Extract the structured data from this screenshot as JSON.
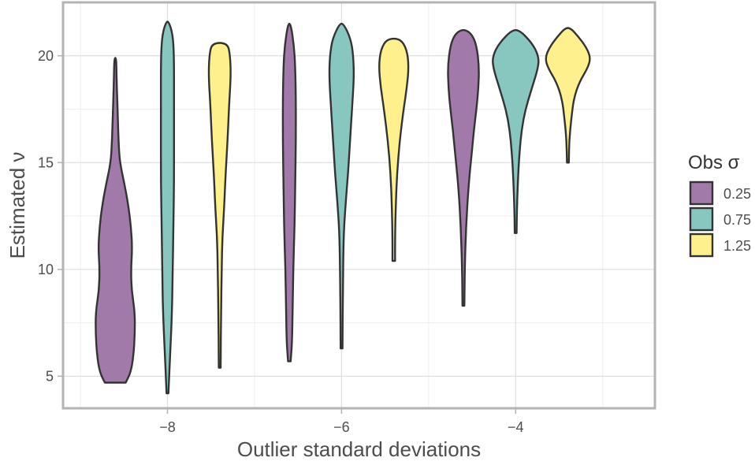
{
  "chart_data": {
    "type": "violin",
    "xlabel": "Outlier standard deviations",
    "ylabel": "Estimated ν",
    "xlim": [
      -9.2,
      -2.4
    ],
    "ylim": [
      3.5,
      22.5
    ],
    "x_ticks": [
      -8,
      -6,
      -4
    ],
    "x_tick_labels": [
      "−8",
      "−6",
      "−4"
    ],
    "y_ticks": [
      5,
      10,
      15,
      20
    ],
    "y_tick_labels": [
      "5",
      "10",
      "15",
      "20"
    ],
    "grid": true,
    "legend": {
      "title": "Obs σ",
      "placement": "right",
      "entries": [
        {
          "label": "0.25",
          "color": "#a27aaa"
        },
        {
          "label": "0.75",
          "color": "#88c6c0"
        },
        {
          "label": "1.25",
          "color": "#fdf08d"
        }
      ]
    },
    "series": [
      {
        "name": "0.25",
        "color": "#a27aaa",
        "groups": [
          {
            "x": -8.6,
            "min": 4.7,
            "max": 19.9,
            "profile": [
              [
                4.7,
                0.16
              ],
              [
                5.2,
                0.24
              ],
              [
                6.0,
                0.28
              ],
              [
                7.0,
                0.3
              ],
              [
                8.0,
                0.3
              ],
              [
                9.0,
                0.25
              ],
              [
                10.0,
                0.24
              ],
              [
                11.0,
                0.26
              ],
              [
                12.0,
                0.24
              ],
              [
                13.0,
                0.2
              ],
              [
                14.0,
                0.14
              ],
              [
                15.0,
                0.07
              ],
              [
                16.0,
                0.05
              ],
              [
                17.0,
                0.04
              ],
              [
                18.0,
                0.03
              ],
              [
                19.0,
                0.02
              ],
              [
                19.9,
                0.01
              ]
            ]
          },
          {
            "x": -6.6,
            "min": 5.7,
            "max": 21.5,
            "profile": [
              [
                5.7,
                0.02
              ],
              [
                6.5,
                0.04
              ],
              [
                8.0,
                0.05
              ],
              [
                10.0,
                0.06
              ],
              [
                12.0,
                0.08
              ],
              [
                14.0,
                0.09
              ],
              [
                16.0,
                0.1
              ],
              [
                18.0,
                0.1
              ],
              [
                19.5,
                0.09
              ],
              [
                20.5,
                0.07
              ],
              [
                21.5,
                0.02
              ]
            ]
          },
          {
            "x": -4.6,
            "min": 8.3,
            "max": 21.2,
            "profile": [
              [
                8.3,
                0.01
              ],
              [
                10.0,
                0.02
              ],
              [
                12.0,
                0.04
              ],
              [
                14.0,
                0.08
              ],
              [
                15.5,
                0.13
              ],
              [
                16.5,
                0.16
              ],
              [
                17.5,
                0.2
              ],
              [
                18.5,
                0.23
              ],
              [
                19.5,
                0.24
              ],
              [
                20.5,
                0.2
              ],
              [
                21.0,
                0.13
              ],
              [
                21.2,
                0.04
              ]
            ]
          }
        ]
      },
      {
        "name": "0.75",
        "color": "#88c6c0",
        "groups": [
          {
            "x": -8.0,
            "min": 4.2,
            "max": 21.6,
            "profile": [
              [
                4.2,
                0.01
              ],
              [
                6.0,
                0.04
              ],
              [
                8.0,
                0.07
              ],
              [
                10.0,
                0.08
              ],
              [
                12.0,
                0.09
              ],
              [
                14.0,
                0.1
              ],
              [
                16.0,
                0.1
              ],
              [
                18.0,
                0.1
              ],
              [
                20.0,
                0.1
              ],
              [
                21.0,
                0.08
              ],
              [
                21.6,
                0.02
              ]
            ]
          },
          {
            "x": -6.0,
            "min": 6.3,
            "max": 21.5,
            "profile": [
              [
                6.3,
                0.01
              ],
              [
                9.0,
                0.02
              ],
              [
                11.5,
                0.03
              ],
              [
                13.0,
                0.06
              ],
              [
                14.5,
                0.1
              ],
              [
                16.0,
                0.13
              ],
              [
                17.5,
                0.16
              ],
              [
                19.0,
                0.19
              ],
              [
                20.0,
                0.18
              ],
              [
                20.8,
                0.14
              ],
              [
                21.5,
                0.03
              ]
            ]
          },
          {
            "x": -4.0,
            "min": 11.7,
            "max": 21.2,
            "profile": [
              [
                11.7,
                0.01
              ],
              [
                13.0,
                0.02
              ],
              [
                14.5,
                0.04
              ],
              [
                15.5,
                0.06
              ],
              [
                16.5,
                0.09
              ],
              [
                17.5,
                0.15
              ],
              [
                18.5,
                0.25
              ],
              [
                19.5,
                0.35
              ],
              [
                20.0,
                0.35
              ],
              [
                20.6,
                0.25
              ],
              [
                21.2,
                0.06
              ]
            ]
          }
        ]
      },
      {
        "name": "1.25",
        "color": "#fdf08d",
        "groups": [
          {
            "x": -7.4,
            "min": 5.4,
            "max": 20.6,
            "profile": [
              [
                5.4,
                0.01
              ],
              [
                8.0,
                0.02
              ],
              [
                10.0,
                0.03
              ],
              [
                11.5,
                0.04
              ],
              [
                13.0,
                0.07
              ],
              [
                14.5,
                0.09
              ],
              [
                16.0,
                0.12
              ],
              [
                17.5,
                0.14
              ],
              [
                19.0,
                0.17
              ],
              [
                20.0,
                0.16
              ],
              [
                20.6,
                0.12
              ]
            ]
          },
          {
            "x": -5.4,
            "min": 10.4,
            "max": 20.8,
            "profile": [
              [
                10.4,
                0.02
              ],
              [
                11.5,
                0.02
              ],
              [
                13.0,
                0.03
              ],
              [
                14.5,
                0.05
              ],
              [
                16.0,
                0.09
              ],
              [
                17.5,
                0.15
              ],
              [
                18.5,
                0.2
              ],
              [
                19.5,
                0.23
              ],
              [
                20.3,
                0.2
              ],
              [
                20.8,
                0.1
              ]
            ]
          },
          {
            "x": -3.4,
            "min": 15.0,
            "max": 21.3,
            "profile": [
              [
                15.0,
                0.01
              ],
              [
                16.0,
                0.02
              ],
              [
                17.0,
                0.05
              ],
              [
                18.0,
                0.09
              ],
              [
                18.8,
                0.18
              ],
              [
                19.4,
                0.3
              ],
              [
                19.9,
                0.35
              ],
              [
                20.4,
                0.28
              ],
              [
                20.9,
                0.16
              ],
              [
                21.3,
                0.04
              ]
            ]
          }
        ]
      }
    ]
  }
}
